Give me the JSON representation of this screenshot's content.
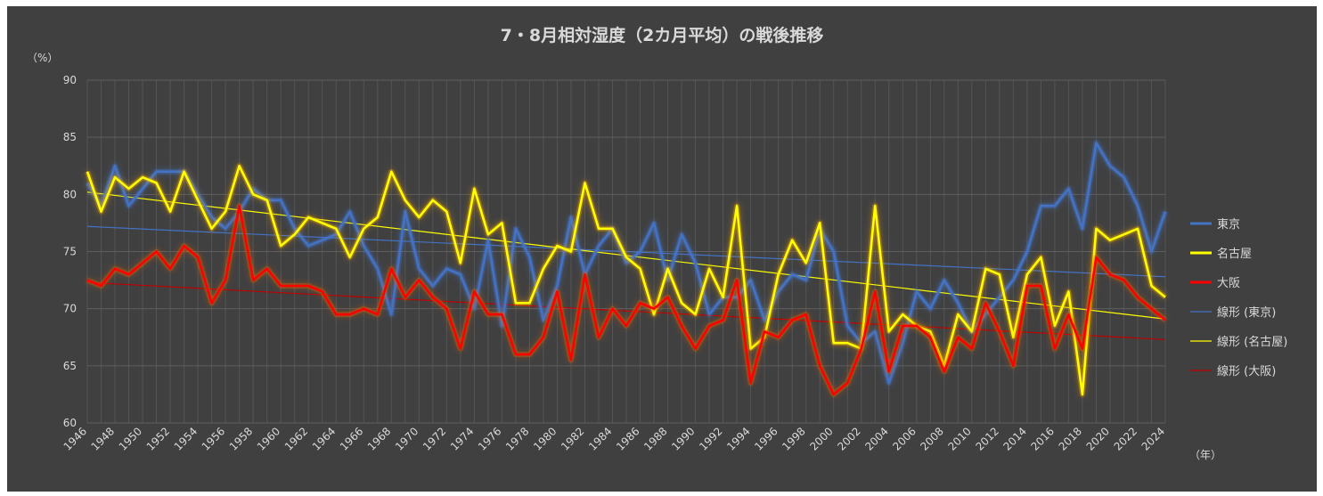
{
  "chart_data": {
    "type": "line",
    "title": "7・8月相対湿度（2カ月平均）の戦後推移",
    "ylabel": "（%）",
    "xlabel": "（年）",
    "ylim": [
      60,
      90
    ],
    "yticks": [
      60,
      65,
      70,
      75,
      80,
      85,
      90
    ],
    "grid": true,
    "legend_position": "right",
    "x": [
      1946,
      1947,
      1948,
      1949,
      1950,
      1951,
      1952,
      1953,
      1954,
      1955,
      1956,
      1957,
      1958,
      1959,
      1960,
      1961,
      1962,
      1963,
      1964,
      1965,
      1966,
      1967,
      1968,
      1969,
      1970,
      1971,
      1972,
      1973,
      1974,
      1975,
      1976,
      1977,
      1978,
      1979,
      1980,
      1981,
      1982,
      1983,
      1984,
      1985,
      1986,
      1987,
      1988,
      1989,
      1990,
      1991,
      1992,
      1993,
      1994,
      1995,
      1996,
      1997,
      1998,
      1999,
      2000,
      2001,
      2002,
      2003,
      2004,
      2005,
      2006,
      2007,
      2008,
      2009,
      2010,
      2011,
      2012,
      2013,
      2014,
      2015,
      2016,
      2017,
      2018,
      2019,
      2020,
      2021,
      2022,
      2023,
      2024
    ],
    "xtick_labels": [
      "1946",
      "1948",
      "1950",
      "1952",
      "1954",
      "1956",
      "1958",
      "1960",
      "1962",
      "1964",
      "1966",
      "1968",
      "1970",
      "1972",
      "1974",
      "1976",
      "1978",
      "1980",
      "1982",
      "1984",
      "1986",
      "1988",
      "1990",
      "1992",
      "1994",
      "1996",
      "1998",
      "2000",
      "2002",
      "2004",
      "2006",
      "2008",
      "2010",
      "2012",
      "2014",
      "2016",
      "2018",
      "2020",
      "2022",
      "2024"
    ],
    "series": [
      {
        "name": "東京",
        "color": "#4472c4",
        "values": [
          81,
          79,
          82.5,
          79,
          80.5,
          82,
          82,
          82,
          80,
          78,
          77,
          78.5,
          80.5,
          79.5,
          79.5,
          77,
          75.5,
          76,
          76.5,
          78.5,
          75.5,
          73.5,
          69.5,
          78.5,
          73.5,
          72,
          73.5,
          73,
          70,
          76,
          68.5,
          77,
          74.5,
          69,
          72,
          78,
          73,
          75.5,
          77,
          74,
          75,
          77.5,
          72.5,
          76.5,
          74,
          69.5,
          71,
          71,
          72.5,
          69,
          71.5,
          73,
          72.5,
          77,
          75,
          68.5,
          67,
          68,
          63.5,
          67,
          71.5,
          70,
          72.5,
          70.5,
          68,
          69.5,
          71,
          72.5,
          75,
          79,
          79,
          80.5,
          77,
          84.5,
          82.5,
          81.5,
          79,
          75,
          78.5
        ]
      },
      {
        "name": "名古屋",
        "color": "#ffff00",
        "values": [
          82,
          78.5,
          81.5,
          80.5,
          81.5,
          81,
          78.5,
          82,
          79.5,
          77,
          78.5,
          82.5,
          80,
          79.5,
          75.5,
          76.5,
          78,
          77.5,
          77,
          74.5,
          77,
          78,
          82,
          79.5,
          78,
          79.5,
          78.5,
          74,
          80.5,
          76.5,
          77.5,
          70.5,
          70.5,
          73.5,
          75.5,
          75,
          81,
          77,
          77,
          74.5,
          73.5,
          69.5,
          73.5,
          70.5,
          69.5,
          73.5,
          71,
          79,
          66.5,
          67.5,
          73,
          76,
          74,
          77.5,
          67,
          67,
          66.5,
          79,
          68,
          69.5,
          68.5,
          68,
          65,
          69.5,
          68,
          73.5,
          73,
          67.5,
          73,
          74.5,
          68.5,
          71.5,
          62.5,
          77,
          76,
          76.5,
          77,
          72,
          71
        ]
      },
      {
        "name": "大阪",
        "color": "#ff0000",
        "values": [
          72.5,
          72,
          73.5,
          73,
          74,
          75,
          73.5,
          75.5,
          74.5,
          70.5,
          72.5,
          79,
          72.5,
          73.5,
          72,
          72,
          72,
          71.5,
          69.5,
          69.5,
          70,
          69.5,
          73.5,
          71,
          72.5,
          71,
          70,
          66.5,
          71.5,
          69.5,
          69.5,
          66,
          66,
          67.5,
          71.5,
          65.5,
          73,
          67.5,
          70,
          68.5,
          70.5,
          70,
          71,
          68.5,
          66.5,
          68.5,
          69,
          72.5,
          63.5,
          68,
          67.5,
          69,
          69.5,
          65,
          62.5,
          63.5,
          66.5,
          71.5,
          64.5,
          68.5,
          68.5,
          67.5,
          64.5,
          67.5,
          66.5,
          70.5,
          68,
          65,
          72,
          72,
          66.5,
          69.5,
          66.5,
          74.5,
          73,
          72.5,
          71,
          70,
          69
        ]
      }
    ],
    "trendlines": [
      {
        "name": "線形 (東京)",
        "color": "#4472c4",
        "start": 77.2,
        "end": 72.8
      },
      {
        "name": "線形 (名古屋)",
        "color": "#ffff00",
        "start": 80.2,
        "end": 69.1
      },
      {
        "name": "線形 (大阪)",
        "color": "#c00000",
        "start": 72.3,
        "end": 67.3
      }
    ]
  }
}
